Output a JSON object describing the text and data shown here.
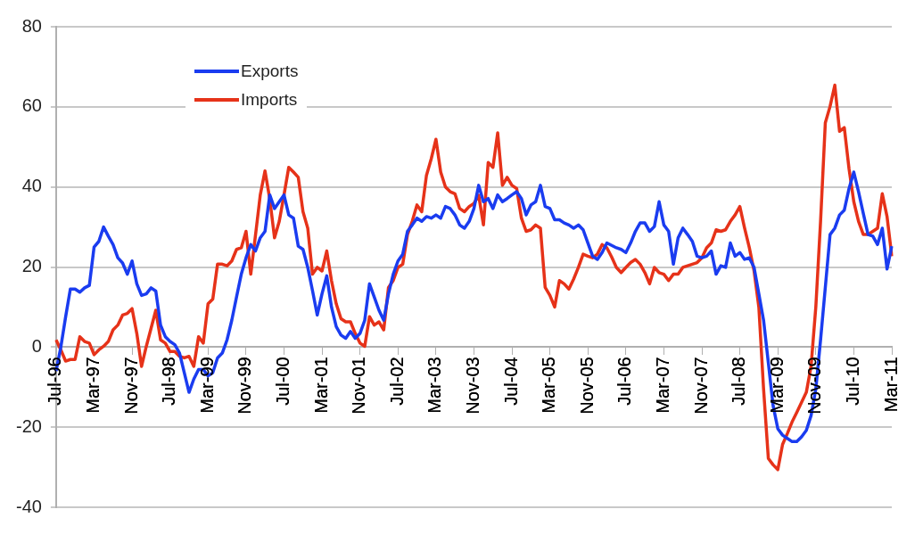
{
  "chart_data": {
    "type": "line",
    "categories": [
      "Jul-96",
      null,
      null,
      null,
      null,
      null,
      null,
      null,
      "Mar-97",
      null,
      null,
      null,
      null,
      null,
      null,
      null,
      "Nov-97",
      null,
      null,
      null,
      null,
      null,
      null,
      null,
      "Jul-98",
      null,
      null,
      null,
      null,
      null,
      null,
      null,
      "Mar-99",
      null,
      null,
      null,
      null,
      null,
      null,
      null,
      "Nov-99",
      null,
      null,
      null,
      null,
      null,
      null,
      null,
      "Jul-00",
      null,
      null,
      null,
      null,
      null,
      null,
      null,
      "Mar-01",
      null,
      null,
      null,
      null,
      null,
      null,
      null,
      "Nov-01",
      null,
      null,
      null,
      null,
      null,
      null,
      null,
      "Jul-02",
      null,
      null,
      null,
      null,
      null,
      null,
      null,
      "Mar-03",
      null,
      null,
      null,
      null,
      null,
      null,
      null,
      "Nov-03",
      null,
      null,
      null,
      null,
      null,
      null,
      null,
      "Jul-04",
      null,
      null,
      null,
      null,
      null,
      null,
      null,
      "Mar-05",
      null,
      null,
      null,
      null,
      null,
      null,
      null,
      "Nov-05",
      null,
      null,
      null,
      null,
      null,
      null,
      null,
      "Jul-06",
      null,
      null,
      null,
      null,
      null,
      null,
      null,
      "Mar-07",
      null,
      null,
      null,
      null,
      null,
      null,
      null,
      "Nov-07",
      null,
      null,
      null,
      null,
      null,
      null,
      null,
      "Jul-08",
      null,
      null,
      null,
      null,
      null,
      null,
      null,
      "Mar-09",
      null,
      null,
      null,
      null,
      null,
      null,
      null,
      "Nov-09",
      null,
      null,
      null,
      null,
      null,
      null,
      null,
      "Jul-10",
      null,
      null,
      null,
      null,
      null,
      null,
      null,
      "Mar-11"
    ],
    "series": [
      {
        "name": "Exports",
        "color": "#1a3cf0",
        "values": [
          -6,
          0,
          7.5,
          14.5,
          14.5,
          13.7,
          14.8,
          15.4,
          25,
          26.4,
          30,
          27.7,
          25.6,
          22.3,
          21,
          18.2,
          21.5,
          15.8,
          12.9,
          13.3,
          14.8,
          14,
          5.5,
          2.6,
          1.4,
          0.6,
          -1.5,
          -6.4,
          -11.3,
          -8,
          -5.6,
          -5.6,
          -7.2,
          -6.4,
          -2.7,
          -1.5,
          1.8,
          6.7,
          12.5,
          18.2,
          22.3,
          25.6,
          24,
          27.3,
          28.9,
          38,
          34.6,
          36.3,
          38,
          33,
          32.2,
          25.2,
          24.4,
          19.9,
          14.1,
          8,
          13.3,
          17.8,
          10,
          5.1,
          3,
          2.2,
          3.9,
          2.2,
          3.4,
          6.7,
          15.8,
          12.5,
          9.2,
          6.7,
          13.3,
          18.2,
          21.5,
          23.2,
          28.9,
          30.5,
          32.2,
          31.4,
          32.6,
          32.2,
          33,
          32.2,
          35.1,
          34.6,
          33,
          30.5,
          29.7,
          31.4,
          34.6,
          40.4,
          36.3,
          37.1,
          34.6,
          38,
          36.3,
          37.1,
          38,
          38.8,
          37.1,
          33,
          35.5,
          36.3,
          40.4,
          35.1,
          34.6,
          31.8,
          31.8,
          31,
          30.5,
          29.7,
          30.5,
          29.3,
          26,
          22.7,
          21.9,
          23.6,
          26,
          25.4,
          24.8,
          24.4,
          23.6,
          26,
          28.9,
          31,
          31,
          28.9,
          30.1,
          36.3,
          30.5,
          28.9,
          20.7,
          27.3,
          29.7,
          28.1,
          26.4,
          22.7,
          22.3,
          22.7,
          24,
          18.2,
          20.3,
          19.9,
          26,
          22.7,
          23.6,
          21.9,
          22.3,
          19.9,
          13.3,
          6.7,
          -3.9,
          -14.6,
          -20.4,
          -22,
          -22.8,
          -23.6,
          -23.6,
          -22.4,
          -20.8,
          -17.1,
          -10.5,
          1.8,
          14.9,
          28.1,
          29.7,
          33,
          34.2,
          39.6,
          43.7,
          38.8,
          33.4,
          28.1,
          27.7,
          25.6,
          29.7,
          19.5,
          25.2
        ]
      },
      {
        "name": "Imports",
        "color": "#e63219",
        "values": [
          1.8,
          -0.7,
          -3.5,
          -3.1,
          -3.1,
          2.6,
          1.4,
          1,
          -1.9,
          -0.7,
          0.2,
          1.4,
          4.3,
          5.5,
          8,
          8.4,
          9.6,
          3.4,
          -4.8,
          0.2,
          4.7,
          9.2,
          1.8,
          1,
          -1.1,
          -1.1,
          -2.3,
          -2.7,
          -2.3,
          -4.8,
          2.6,
          1,
          10.8,
          12,
          20.7,
          20.7,
          20.3,
          21.5,
          24.4,
          24.8,
          28.9,
          18.2,
          28,
          38,
          44,
          37,
          27.3,
          31.4,
          38,
          44.9,
          43.7,
          42.4,
          33.8,
          29.7,
          18.2,
          19.9,
          19,
          24,
          16.6,
          10.8,
          7.1,
          6.3,
          6.3,
          3.4,
          1,
          0.2,
          7.6,
          5.5,
          6.3,
          4.3,
          14.9,
          16.6,
          19.9,
          20.7,
          28.1,
          31.4,
          35.5,
          33.8,
          42.9,
          47,
          51.9,
          43.7,
          40,
          38.8,
          38.3,
          34.6,
          33.8,
          35.1,
          35.9,
          37.9,
          30.5,
          46.1,
          44.9,
          53.5,
          40.4,
          42.4,
          40.4,
          39.6,
          32.2,
          28.9,
          29.3,
          30.5,
          29.7,
          14.9,
          12.9,
          10,
          16.6,
          15.8,
          14.5,
          17,
          19.9,
          23.2,
          22.7,
          22.3,
          23.2,
          25.6,
          24.8,
          22.5,
          19.9,
          18.6,
          19.9,
          21.1,
          21.9,
          20.7,
          18.6,
          15.8,
          19.9,
          18.6,
          18.2,
          16.6,
          18.2,
          18.2,
          19.9,
          20.3,
          20.7,
          21.1,
          22.3,
          24.8,
          26,
          29.3,
          28.9,
          29.3,
          31.4,
          33,
          35.1,
          29.7,
          24.8,
          19,
          10,
          -10.5,
          -27.8,
          -29.4,
          -30.6,
          -24.3,
          -21.6,
          -18.7,
          -16.3,
          -13.8,
          -11.3,
          -4.8,
          10,
          31.4,
          56,
          60.1,
          65.4,
          53.9,
          54.8,
          44.5,
          36.3,
          31.4,
          28.1,
          28.1,
          28.9,
          29.7,
          38.3,
          32.6,
          22.7
        ]
      }
    ],
    "ylim": [
      -40,
      80
    ],
    "yticks": [
      -40,
      -20,
      0,
      20,
      40,
      60,
      80
    ],
    "grid": "y",
    "legend": "top left"
  }
}
